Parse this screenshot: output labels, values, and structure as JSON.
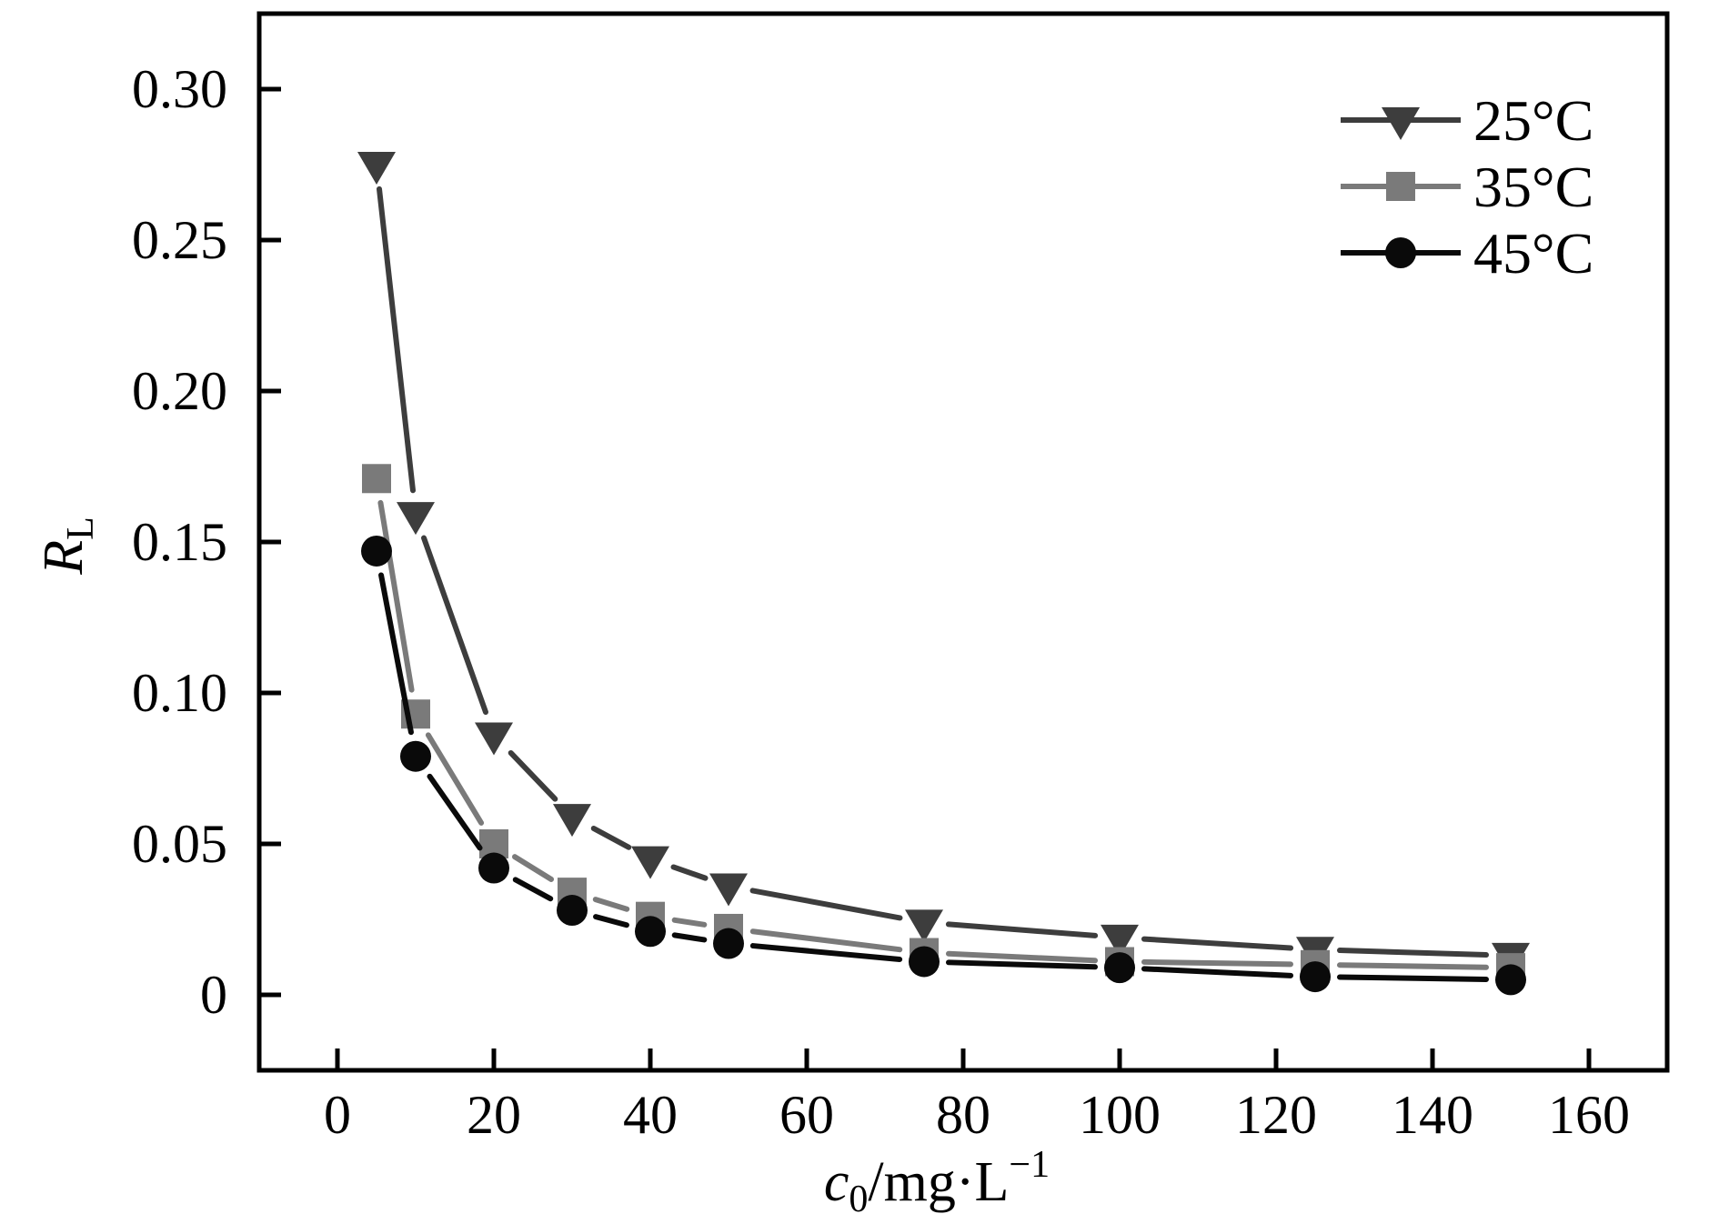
{
  "figure": {
    "background": "#ffffff",
    "frame_color": "#000000",
    "text_color": "#000000"
  },
  "chart_data": {
    "type": "line",
    "title": "",
    "x": [
      5,
      10,
      20,
      30,
      40,
      50,
      75,
      100,
      125,
      150
    ],
    "series": [
      {
        "name": "25°C",
        "marker": "triangle-down",
        "color": "#3d3d3d",
        "values": [
          0.275,
          0.159,
          0.086,
          0.059,
          0.045,
          0.036,
          0.024,
          0.019,
          0.015,
          0.013
        ]
      },
      {
        "name": "35°C",
        "marker": "square",
        "color": "#7a7a7a",
        "values": [
          0.171,
          0.093,
          0.05,
          0.034,
          0.026,
          0.022,
          0.014,
          0.011,
          0.01,
          0.009
        ]
      },
      {
        "name": "45°C",
        "marker": "circle",
        "color": "#0a0a0a",
        "values": [
          0.147,
          0.079,
          0.042,
          0.028,
          0.021,
          0.017,
          0.011,
          0.009,
          0.006,
          0.005
        ]
      }
    ],
    "xlabel_parts": {
      "variable": "c",
      "subscript": "0",
      "unit": "/mg·L",
      "superscript": "−1"
    },
    "ylabel_parts": {
      "variable": "R",
      "subscript": "L"
    },
    "xlim": [
      -10,
      170
    ],
    "ylim": [
      -0.025,
      0.325
    ],
    "x_ticks": [
      0,
      20,
      40,
      60,
      80,
      100,
      120,
      140,
      160
    ],
    "x_tick_labels": [
      "0",
      "20",
      "40",
      "60",
      "80",
      "100",
      "120",
      "140",
      "160"
    ],
    "y_ticks": [
      0,
      0.05,
      0.1,
      0.15,
      0.2,
      0.25,
      0.3
    ],
    "y_tick_labels": [
      "0",
      "0.05",
      "0.10",
      "0.15",
      "0.20",
      "0.25",
      "0.30"
    ],
    "grid": false,
    "legend_position": "top-right"
  }
}
